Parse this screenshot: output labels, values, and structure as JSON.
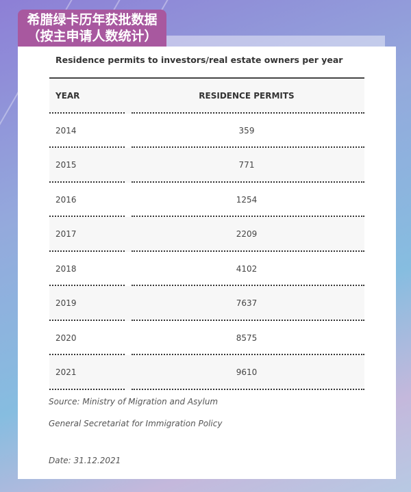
{
  "banner": {
    "line1": "希腊绿卡历年获批数据",
    "line2": "（按主申请人数统计）",
    "color": "#a8589f"
  },
  "table": {
    "title": "Residence permits to investors/real estate owners per year",
    "headers": [
      "YEAR",
      "RESIDENCE PERMITS"
    ],
    "rows": [
      {
        "year": "2014",
        "permits": "359"
      },
      {
        "year": "2015",
        "permits": "771"
      },
      {
        "year": "2016",
        "permits": "1254"
      },
      {
        "year": "2017",
        "permits": "2209"
      },
      {
        "year": "2018",
        "permits": "4102"
      },
      {
        "year": "2019",
        "permits": "7637"
      },
      {
        "year": "2020",
        "permits": "8575"
      },
      {
        "year": "2021",
        "permits": "9610"
      }
    ]
  },
  "notes": {
    "source": "Source: Ministry of Migration and Asylum",
    "secretariat": "General Secretariat for Immigration Policy",
    "date": "Date: 31.12.2021"
  }
}
